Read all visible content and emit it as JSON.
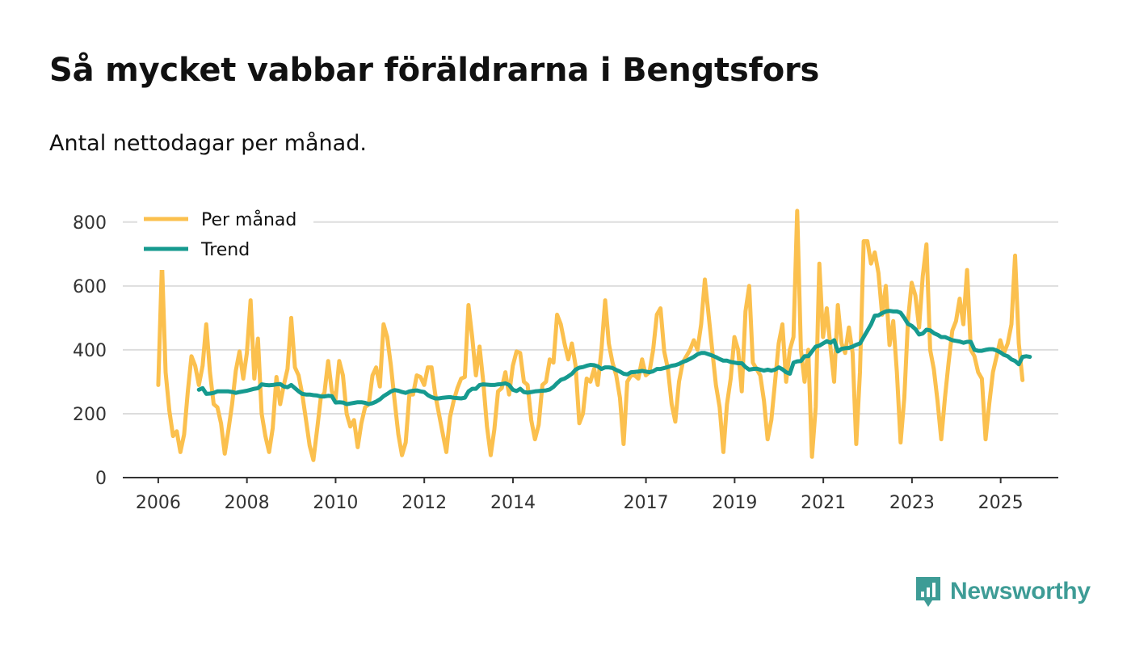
{
  "title": "Så mycket vabbar föräldrarna i Bengtsfors",
  "subtitle": "Antal nettodagar per månad.",
  "brand": {
    "name": "Newsworthy",
    "icon": "newsworthy-logo-icon",
    "color": "#3e9c96"
  },
  "chart_data": {
    "type": "line",
    "title": "Så mycket vabbar föräldrarna i Bengtsfors",
    "subtitle": "Antal nettodagar per månad.",
    "xlabel": "",
    "ylabel": "",
    "ylim": [
      0,
      850
    ],
    "xlim": [
      2005.2,
      2026.3
    ],
    "yticks": [
      0,
      200,
      400,
      600,
      800
    ],
    "xticks": [
      {
        "value": 2006,
        "label": "2006"
      },
      {
        "value": 2008,
        "label": "2008"
      },
      {
        "value": 2010,
        "label": "2010"
      },
      {
        "value": 2012,
        "label": "2012"
      },
      {
        "value": 2014,
        "label": "2014"
      },
      {
        "value": 2017,
        "label": "2017"
      },
      {
        "value": 2019,
        "label": "2019"
      },
      {
        "value": 2021,
        "label": "2021"
      },
      {
        "value": 2023,
        "label": "2023"
      },
      {
        "value": 2025,
        "label": "2025"
      }
    ],
    "grid": true,
    "legend_position": "top-left",
    "series": [
      {
        "name": "Per månad",
        "color": "#fbc04e",
        "x_start": 2006.0,
        "step": 0.0833,
        "values": [
          290,
          675,
          330,
          210,
          130,
          145,
          80,
          135,
          270,
          380,
          350,
          290,
          350,
          480,
          330,
          230,
          220,
          170,
          75,
          150,
          230,
          335,
          395,
          310,
          390,
          555,
          310,
          435,
          200,
          130,
          80,
          155,
          315,
          230,
          290,
          340,
          500,
          345,
          320,
          260,
          180,
          100,
          55,
          150,
          250,
          265,
          365,
          270,
          245,
          365,
          320,
          200,
          160,
          180,
          95,
          170,
          220,
          230,
          320,
          345,
          285,
          480,
          440,
          350,
          240,
          135,
          70,
          110,
          260,
          260,
          320,
          315,
          290,
          345,
          345,
          260,
          200,
          140,
          80,
          190,
          240,
          280,
          310,
          315,
          540,
          440,
          320,
          410,
          300,
          160,
          70,
          150,
          270,
          280,
          330,
          260,
          350,
          395,
          390,
          300,
          290,
          180,
          120,
          165,
          290,
          300,
          370,
          360,
          510,
          480,
          420,
          370,
          420,
          350,
          170,
          200,
          310,
          300,
          340,
          290,
          400,
          555,
          420,
          360,
          320,
          250,
          105,
          300,
          320,
          320,
          310,
          370,
          320,
          330,
          400,
          510,
          530,
          395,
          340,
          230,
          175,
          300,
          360,
          380,
          400,
          430,
          400,
          480,
          620,
          510,
          400,
          290,
          220,
          80,
          230,
          310,
          440,
          400,
          270,
          520,
          600,
          360,
          340,
          320,
          240,
          120,
          180,
          300,
          420,
          480,
          300,
          400,
          440,
          835,
          400,
          300,
          400,
          65,
          220,
          670,
          440,
          530,
          410,
          300,
          540,
          420,
          390,
          470,
          390,
          105,
          330,
          740,
          740,
          670,
          705,
          640,
          510,
          600,
          415,
          490,
          330,
          110,
          250,
          490,
          610,
          570,
          470,
          630,
          730,
          400,
          340,
          240,
          120,
          250,
          360,
          460,
          490,
          560,
          480,
          650,
          400,
          380,
          330,
          310,
          120,
          230,
          330,
          380,
          430,
          390,
          420,
          480,
          695,
          420,
          305
        ]
      },
      {
        "name": "Trend",
        "color": "#169a8f",
        "x_start": 2006.917,
        "step": 0.0833,
        "values": [
          275,
          280,
          262,
          263,
          265,
          270,
          270,
          270,
          270,
          268,
          265,
          268,
          270,
          272,
          275,
          278,
          280,
          292,
          290,
          289,
          290,
          292,
          293,
          285,
          283,
          290,
          280,
          270,
          262,
          260,
          260,
          258,
          257,
          254,
          254,
          256,
          255,
          235,
          236,
          235,
          230,
          232,
          234,
          236,
          236,
          234,
          230,
          233,
          238,
          245,
          255,
          262,
          270,
          274,
          272,
          268,
          265,
          270,
          272,
          273,
          270,
          268,
          258,
          252,
          248,
          248,
          250,
          251,
          252,
          250,
          249,
          248,
          250,
          270,
          278,
          278,
          290,
          292,
          291,
          290,
          290,
          292,
          293,
          295,
          290,
          275,
          271,
          278,
          268,
          266,
          268,
          270,
          271,
          272,
          273,
          276,
          284,
          296,
          306,
          310,
          317,
          325,
          338,
          344,
          346,
          350,
          353,
          352,
          348,
          340,
          345,
          345,
          343,
          337,
          332,
          325,
          323,
          330,
          331,
          332,
          334,
          332,
          330,
          333,
          340,
          340,
          343,
          346,
          350,
          352,
          356,
          362,
          366,
          372,
          378,
          386,
          390,
          390,
          386,
          382,
          377,
          371,
          366,
          366,
          362,
          360,
          358,
          358,
          346,
          338,
          340,
          341,
          338,
          335,
          338,
          335,
          338,
          345,
          339,
          330,
          325,
          360,
          364,
          365,
          380,
          380,
          395,
          410,
          413,
          420,
          427,
          422,
          430,
          395,
          403,
          405,
          406,
          410,
          416,
          420,
          440,
          460,
          480,
          507,
          508,
          515,
          520,
          522,
          520,
          520,
          516,
          500,
          481,
          475,
          465,
          448,
          451,
          463,
          461,
          452,
          447,
          440,
          440,
          435,
          430,
          428,
          426,
          422,
          425,
          425,
          400,
          397,
          397,
          400,
          402,
          402,
          398,
          392,
          384,
          380,
          370,
          365,
          355,
          378,
          380,
          378
        ]
      }
    ]
  }
}
